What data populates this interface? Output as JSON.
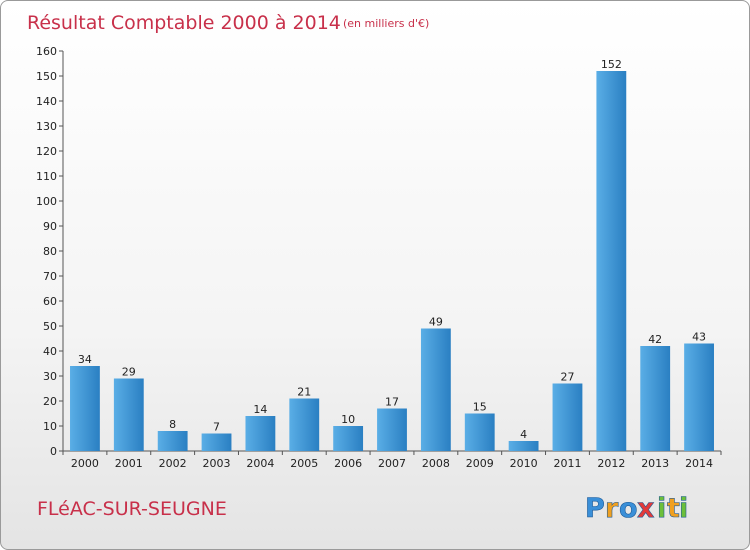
{
  "chart_data": {
    "type": "bar",
    "title": "Résultat Comptable 2000 à 2014",
    "subtitle": "(en milliers d'€)",
    "categories": [
      "2000",
      "2001",
      "2002",
      "2003",
      "2004",
      "2005",
      "2006",
      "2007",
      "2008",
      "2009",
      "2010",
      "2011",
      "2012",
      "2013",
      "2014"
    ],
    "values": [
      34,
      29,
      8,
      7,
      14,
      21,
      10,
      17,
      49,
      15,
      4,
      27,
      152,
      42,
      43
    ],
    "ylim": [
      0,
      160
    ],
    "ystep": 10,
    "xlabel": "",
    "ylabel": "",
    "grid": false,
    "colors": {
      "bar_light": "#5aaee6",
      "bar_dark": "#2a7fc2",
      "text_accent": "#c8304a"
    }
  },
  "commune": "FLéAC-SUR-SEUGNE",
  "logo": {
    "letters": [
      "P",
      "r",
      "o",
      "x",
      "i",
      "t",
      "i"
    ],
    "colors": [
      "#3a8fd8",
      "#f0a020",
      "#3a8fd8",
      "#e23a3a",
      "#6cbf3a",
      "#f0a020",
      "#6cbf3a"
    ]
  }
}
